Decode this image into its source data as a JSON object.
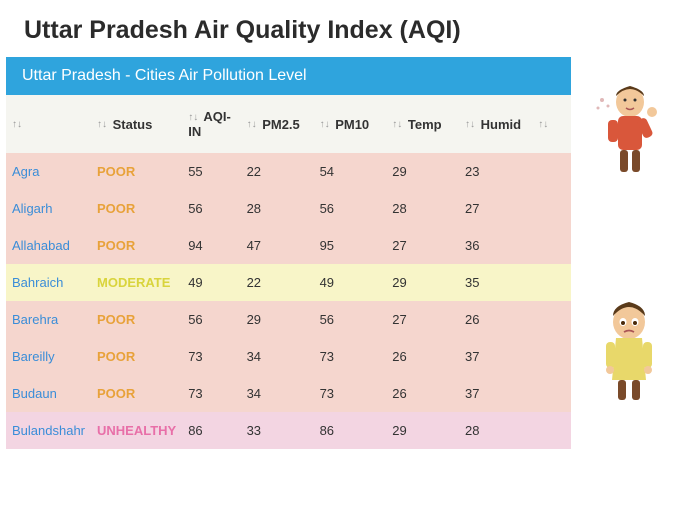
{
  "title": "Uttar Pradesh Air Quality Index (AQI)",
  "subtitle": "Uttar Pradesh - Cities Air Pollution Level",
  "subtitle_bg": "#2fa4dd",
  "columns": [
    "",
    "Status",
    "AQI-IN",
    "PM2.5",
    "PM10",
    "Temp",
    "Humid",
    ""
  ],
  "status_colors": {
    "POOR": "#e8a23a",
    "MODERATE": "#d9d43c",
    "UNHEALTHY": "#e86fa8"
  },
  "row_bg_colors": {
    "POOR": "#f5d6ce",
    "MODERATE": "#f8f5c8",
    "UNHEALTHY": "#f3d5e2"
  },
  "header_bg": "#f5f5f0",
  "city_color": "#3a8dd8",
  "rows": [
    {
      "city": "Agra",
      "status": "POOR",
      "aqi": "55",
      "pm25": "22",
      "pm10": "54",
      "temp": "29",
      "humid": "23"
    },
    {
      "city": "Aligarh",
      "status": "POOR",
      "aqi": "56",
      "pm25": "28",
      "pm10": "56",
      "temp": "28",
      "humid": "27"
    },
    {
      "city": "Allahabad",
      "status": "POOR",
      "aqi": "94",
      "pm25": "47",
      "pm10": "95",
      "temp": "27",
      "humid": "36"
    },
    {
      "city": "Bahraich",
      "status": "MODERATE",
      "aqi": "49",
      "pm25": "22",
      "pm10": "49",
      "temp": "29",
      "humid": "35"
    },
    {
      "city": "Barehra",
      "status": "POOR",
      "aqi": "56",
      "pm25": "29",
      "pm10": "56",
      "temp": "27",
      "humid": "26"
    },
    {
      "city": "Bareilly",
      "status": "POOR",
      "aqi": "73",
      "pm25": "34",
      "pm10": "73",
      "temp": "26",
      "humid": "37"
    },
    {
      "city": "Budaun",
      "status": "POOR",
      "aqi": "73",
      "pm25": "34",
      "pm10": "73",
      "temp": "26",
      "humid": "37"
    },
    {
      "city": "Bulandshahr",
      "status": "UNHEALTHY",
      "aqi": "86",
      "pm25": "33",
      "pm10": "86",
      "temp": "29",
      "humid": "28"
    }
  ],
  "col_widths": [
    "40px",
    "90px",
    "60px",
    "75px",
    "75px",
    "75px",
    "75px",
    "40px"
  ]
}
